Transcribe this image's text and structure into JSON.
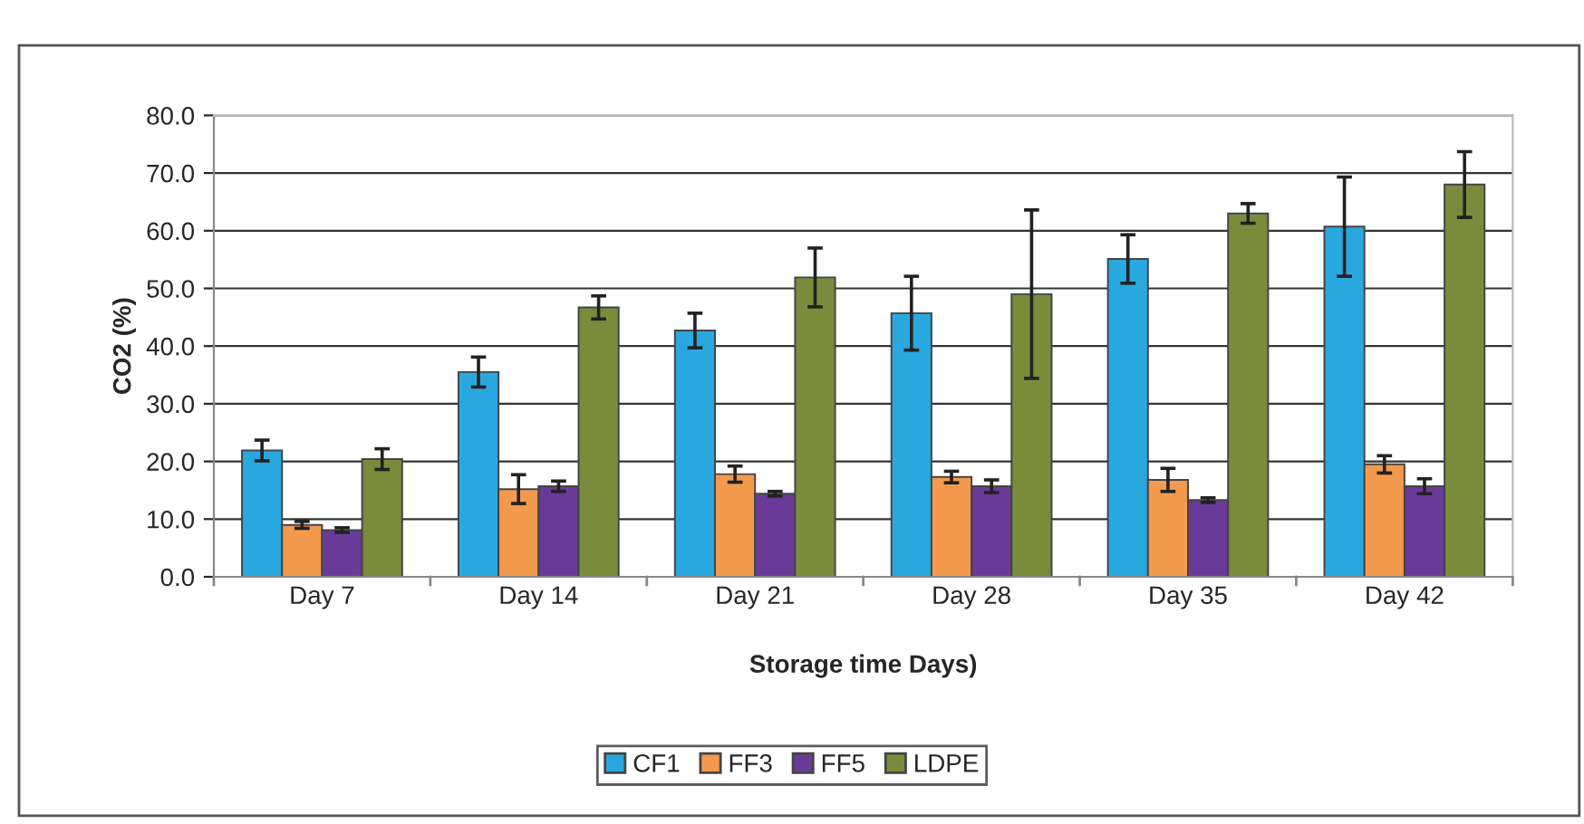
{
  "chart_data": {
    "type": "bar",
    "xlabel": "Storage time Days)",
    "ylabel": "CO2 (%)",
    "categories": [
      "Day 7",
      "Day 14",
      "Day 21",
      "Day 28",
      "Day 35",
      "Day 42"
    ],
    "series": [
      {
        "name": "CF1",
        "color": "#29a8df",
        "values": [
          21.9,
          35.5,
          42.7,
          45.7,
          55.1,
          60.7
        ],
        "errors": [
          1.8,
          2.6,
          3.0,
          6.4,
          4.2,
          8.6
        ]
      },
      {
        "name": "FF3",
        "color": "#f39a4f",
        "values": [
          9.0,
          15.2,
          17.8,
          17.3,
          16.8,
          19.5
        ],
        "errors": [
          0.6,
          2.5,
          1.4,
          1.0,
          2.0,
          1.5
        ]
      },
      {
        "name": "FF5",
        "color": "#6a3a99",
        "values": [
          8.1,
          15.7,
          14.4,
          15.7,
          13.3,
          15.7
        ],
        "errors": [
          0.4,
          0.9,
          0.4,
          1.1,
          0.4,
          1.3
        ]
      },
      {
        "name": "LDPE",
        "color": "#7a8c3c",
        "values": [
          20.4,
          46.7,
          51.9,
          49.0,
          63.0,
          68.0
        ],
        "errors": [
          1.8,
          2.0,
          5.1,
          14.6,
          1.7,
          5.7
        ]
      }
    ],
    "ylim": [
      0,
      80
    ],
    "yticks": [
      {
        "value": 0,
        "label": "0.0"
      },
      {
        "value": 10,
        "label": "10.0"
      },
      {
        "value": 20,
        "label": "20.0"
      },
      {
        "value": 30,
        "label": "30.0"
      },
      {
        "value": 40,
        "label": "40.0"
      },
      {
        "value": 50,
        "label": "50.0"
      },
      {
        "value": 60,
        "label": "60.0"
      },
      {
        "value": 70,
        "label": "70.0"
      },
      {
        "value": 80,
        "label": "80.0"
      }
    ],
    "grid": "y",
    "legend": "bottom"
  }
}
